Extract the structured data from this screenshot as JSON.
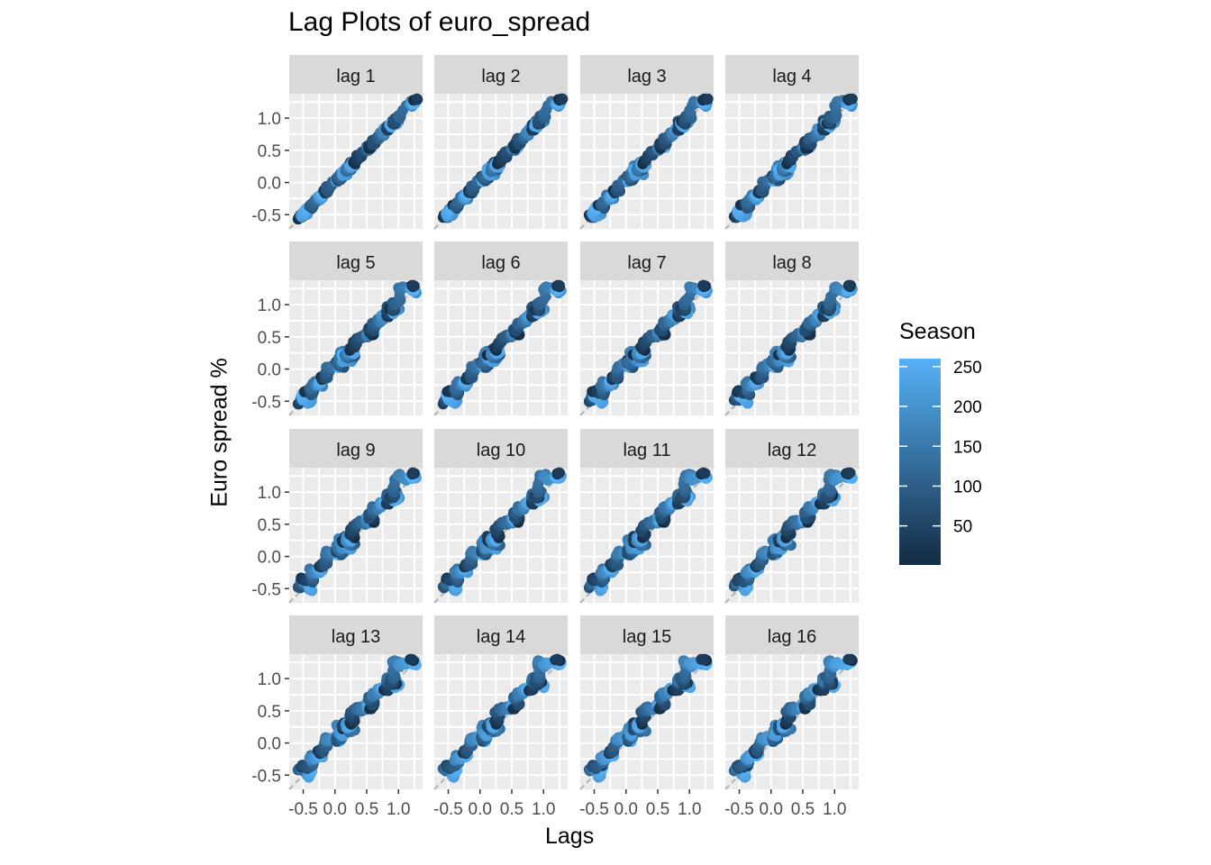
{
  "chart_data": {
    "type": "scatter",
    "title": "Lag Plots of euro_spread",
    "xlabel": "Lags",
    "ylabel": "Euro spread %",
    "x_ticks": [
      "-0.5",
      "0.0",
      "0.5",
      "1.0"
    ],
    "y_ticks": [
      "-0.5",
      "0.0",
      "0.5",
      "1.0"
    ],
    "xlim": [
      -0.72,
      1.38
    ],
    "ylim": [
      -0.72,
      1.38
    ],
    "grid": true,
    "reference_line": "y = x (dashed)",
    "panels": [
      {
        "label": "lag 1",
        "lag": 1
      },
      {
        "label": "lag 2",
        "lag": 2
      },
      {
        "label": "lag 3",
        "lag": 3
      },
      {
        "label": "lag 4",
        "lag": 4
      },
      {
        "label": "lag 5",
        "lag": 5
      },
      {
        "label": "lag 6",
        "lag": 6
      },
      {
        "label": "lag 7",
        "lag": 7
      },
      {
        "label": "lag 8",
        "lag": 8
      },
      {
        "label": "lag 9",
        "lag": 9
      },
      {
        "label": "lag 10",
        "lag": 10
      },
      {
        "label": "lag 11",
        "lag": 11
      },
      {
        "label": "lag 12",
        "lag": 12
      },
      {
        "label": "lag 13",
        "lag": 13
      },
      {
        "label": "lag 14",
        "lag": 14
      },
      {
        "label": "lag 15",
        "lag": 15
      },
      {
        "label": "lag 16",
        "lag": 16
      }
    ],
    "legend": {
      "title": "Season",
      "ticks": [
        "250",
        "200",
        "150",
        "100",
        "50"
      ],
      "tick_values": [
        250,
        200,
        150,
        100,
        50
      ],
      "range": [
        1,
        260
      ],
      "colors": {
        "low": "#132B43",
        "high": "#56B1F7"
      },
      "placement": "right"
    },
    "colors": {
      "panel_bg": "#EBEBEB",
      "strip_bg": "#D9D9D9",
      "grid": "#FFFFFF",
      "refline": "#B3B3B3"
    }
  }
}
